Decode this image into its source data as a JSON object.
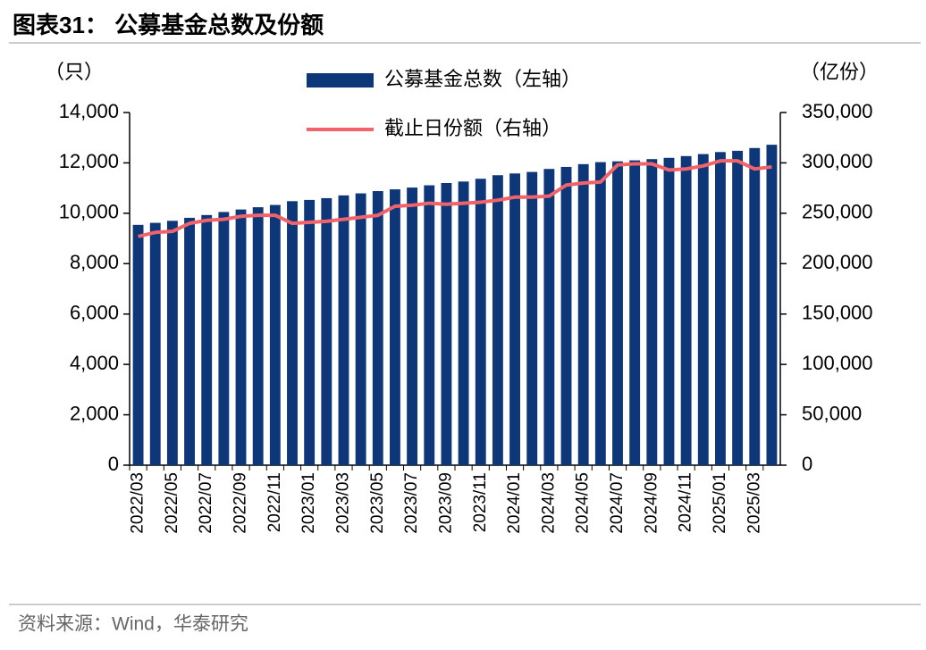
{
  "chart_data": {
    "type": "bar",
    "title": "图表31：   公募基金总数及份额",
    "source": "资料来源：Wind，华泰研究",
    "y_label": "（只）",
    "y2_label": "（亿份）",
    "categories": [
      "2022/03",
      null,
      "2022/05",
      null,
      "2022/07",
      null,
      "2022/09",
      null,
      "2022/11",
      null,
      "2023/01",
      null,
      "2023/03",
      null,
      "2023/05",
      null,
      "2023/07",
      null,
      "2023/09",
      null,
      "2023/11",
      null,
      "2024/01",
      null,
      "2024/03",
      null,
      "2024/05",
      null,
      "2024/07",
      null,
      "2024/09",
      null,
      "2024/11",
      null,
      "2025/01",
      null,
      "2025/03",
      null
    ],
    "series": [
      {
        "name": "公募基金总数（左轴）",
        "type": "bar",
        "axis": "y",
        "color": "#0d3778",
        "values": [
          9540,
          9620,
          9700,
          9820,
          9930,
          10050,
          10150,
          10240,
          10330,
          10480,
          10530,
          10600,
          10710,
          10790,
          10880,
          10950,
          11020,
          11110,
          11200,
          11260,
          11370,
          11510,
          11580,
          11640,
          11760,
          11840,
          11950,
          12030,
          12060,
          12100,
          12150,
          12200,
          12270,
          12350,
          12430,
          12480,
          12590,
          12720
        ]
      },
      {
        "name": "截止日份额（右轴）",
        "type": "line",
        "axis": "y2",
        "color": "#f0636a",
        "values": [
          227000,
          231000,
          232000,
          240000,
          243000,
          244000,
          247000,
          248000,
          248000,
          240000,
          241000,
          242000,
          244000,
          246000,
          248000,
          257000,
          258000,
          260000,
          259000,
          260000,
          261000,
          263000,
          266000,
          266000,
          267000,
          278000,
          280000,
          281000,
          298000,
          299000,
          299000,
          293000,
          294000,
          297000,
          302000,
          302000,
          294000,
          296000
        ]
      }
    ],
    "ylim": [
      0,
      14000
    ],
    "yticks": [
      0,
      {
        "value": 2000,
        "label": "2,000"
      },
      {
        "value": 4000,
        "label": "4,000"
      },
      {
        "value": 6000,
        "label": "6,000"
      },
      {
        "value": 8000,
        "label": "8,000"
      },
      {
        "value": 10000,
        "label": "10,000"
      },
      {
        "value": 12000,
        "label": "12,000"
      },
      {
        "value": 14000,
        "label": "14,000"
      }
    ],
    "y2lim": [
      0,
      350000
    ],
    "y2ticks": [
      0,
      {
        "value": 50000,
        "label": "50,000"
      },
      {
        "value": 100000,
        "label": "100,000"
      },
      {
        "value": 150000,
        "label": "150,000"
      },
      {
        "value": 200000,
        "label": "200,000"
      },
      {
        "value": 250000,
        "label": "250,000"
      },
      {
        "value": 300000,
        "label": "300,000"
      },
      {
        "value": 350000,
        "label": "350,000"
      }
    ],
    "grid": false
  }
}
